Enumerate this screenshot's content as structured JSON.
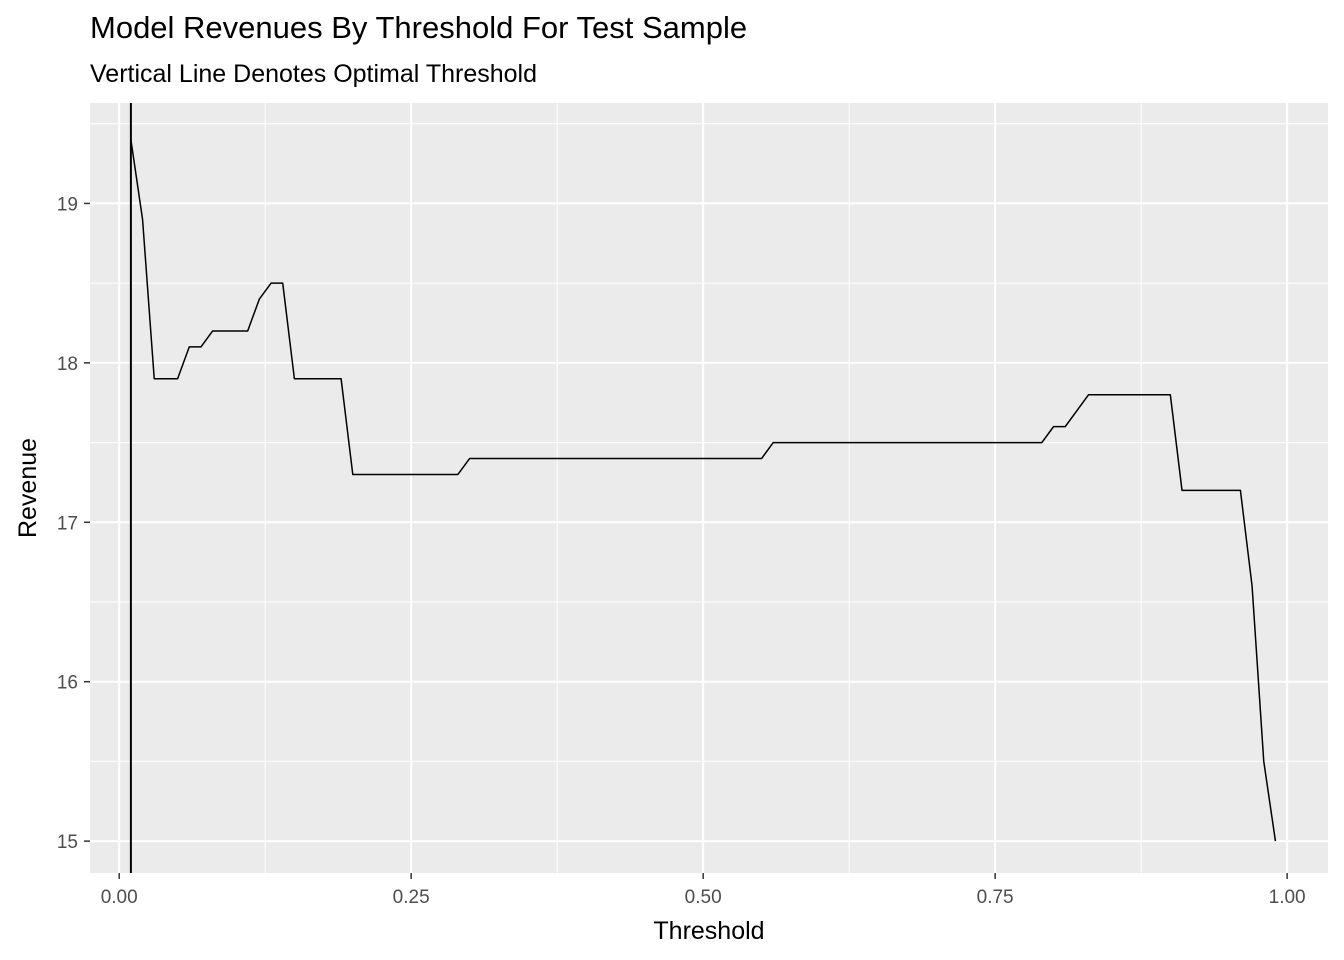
{
  "chart_data": {
    "type": "line",
    "title": "Model Revenues By Threshold For Test Sample",
    "subtitle": "Vertical Line Denotes Optimal Threshold",
    "xlabel": "Threshold",
    "ylabel": "Revenue",
    "xlim": [
      -0.025,
      1.035
    ],
    "ylim": [
      14.8,
      19.63
    ],
    "xticks": [
      0.0,
      0.25,
      0.5,
      0.75,
      1.0
    ],
    "xtick_labels": [
      "0.00",
      "0.25",
      "0.50",
      "0.75",
      "1.00"
    ],
    "yticks": [
      15,
      16,
      17,
      18,
      19
    ],
    "ytick_labels": [
      "15",
      "16",
      "17",
      "18",
      "19"
    ],
    "grid": true,
    "vline": {
      "x": 0.01
    },
    "series": [
      {
        "x": [
          0.01,
          0.02,
          0.03,
          0.04,
          0.05,
          0.06,
          0.07,
          0.08,
          0.09,
          0.1,
          0.11,
          0.12,
          0.13,
          0.14,
          0.15,
          0.16,
          0.17,
          0.18,
          0.19,
          0.2,
          0.29,
          0.3,
          0.55,
          0.56,
          0.79,
          0.8,
          0.81,
          0.82,
          0.83,
          0.9,
          0.91,
          0.96,
          0.97,
          0.98,
          0.99
        ],
        "values": [
          19.4,
          18.9,
          17.9,
          17.9,
          17.9,
          18.1,
          18.1,
          18.2,
          18.2,
          18.2,
          18.2,
          18.4,
          18.5,
          18.5,
          17.9,
          17.9,
          17.9,
          17.9,
          17.9,
          17.3,
          17.3,
          17.4,
          17.4,
          17.5,
          17.5,
          17.6,
          17.6,
          17.7,
          17.8,
          17.8,
          17.2,
          17.2,
          16.6,
          15.5,
          15.0
        ]
      }
    ]
  }
}
